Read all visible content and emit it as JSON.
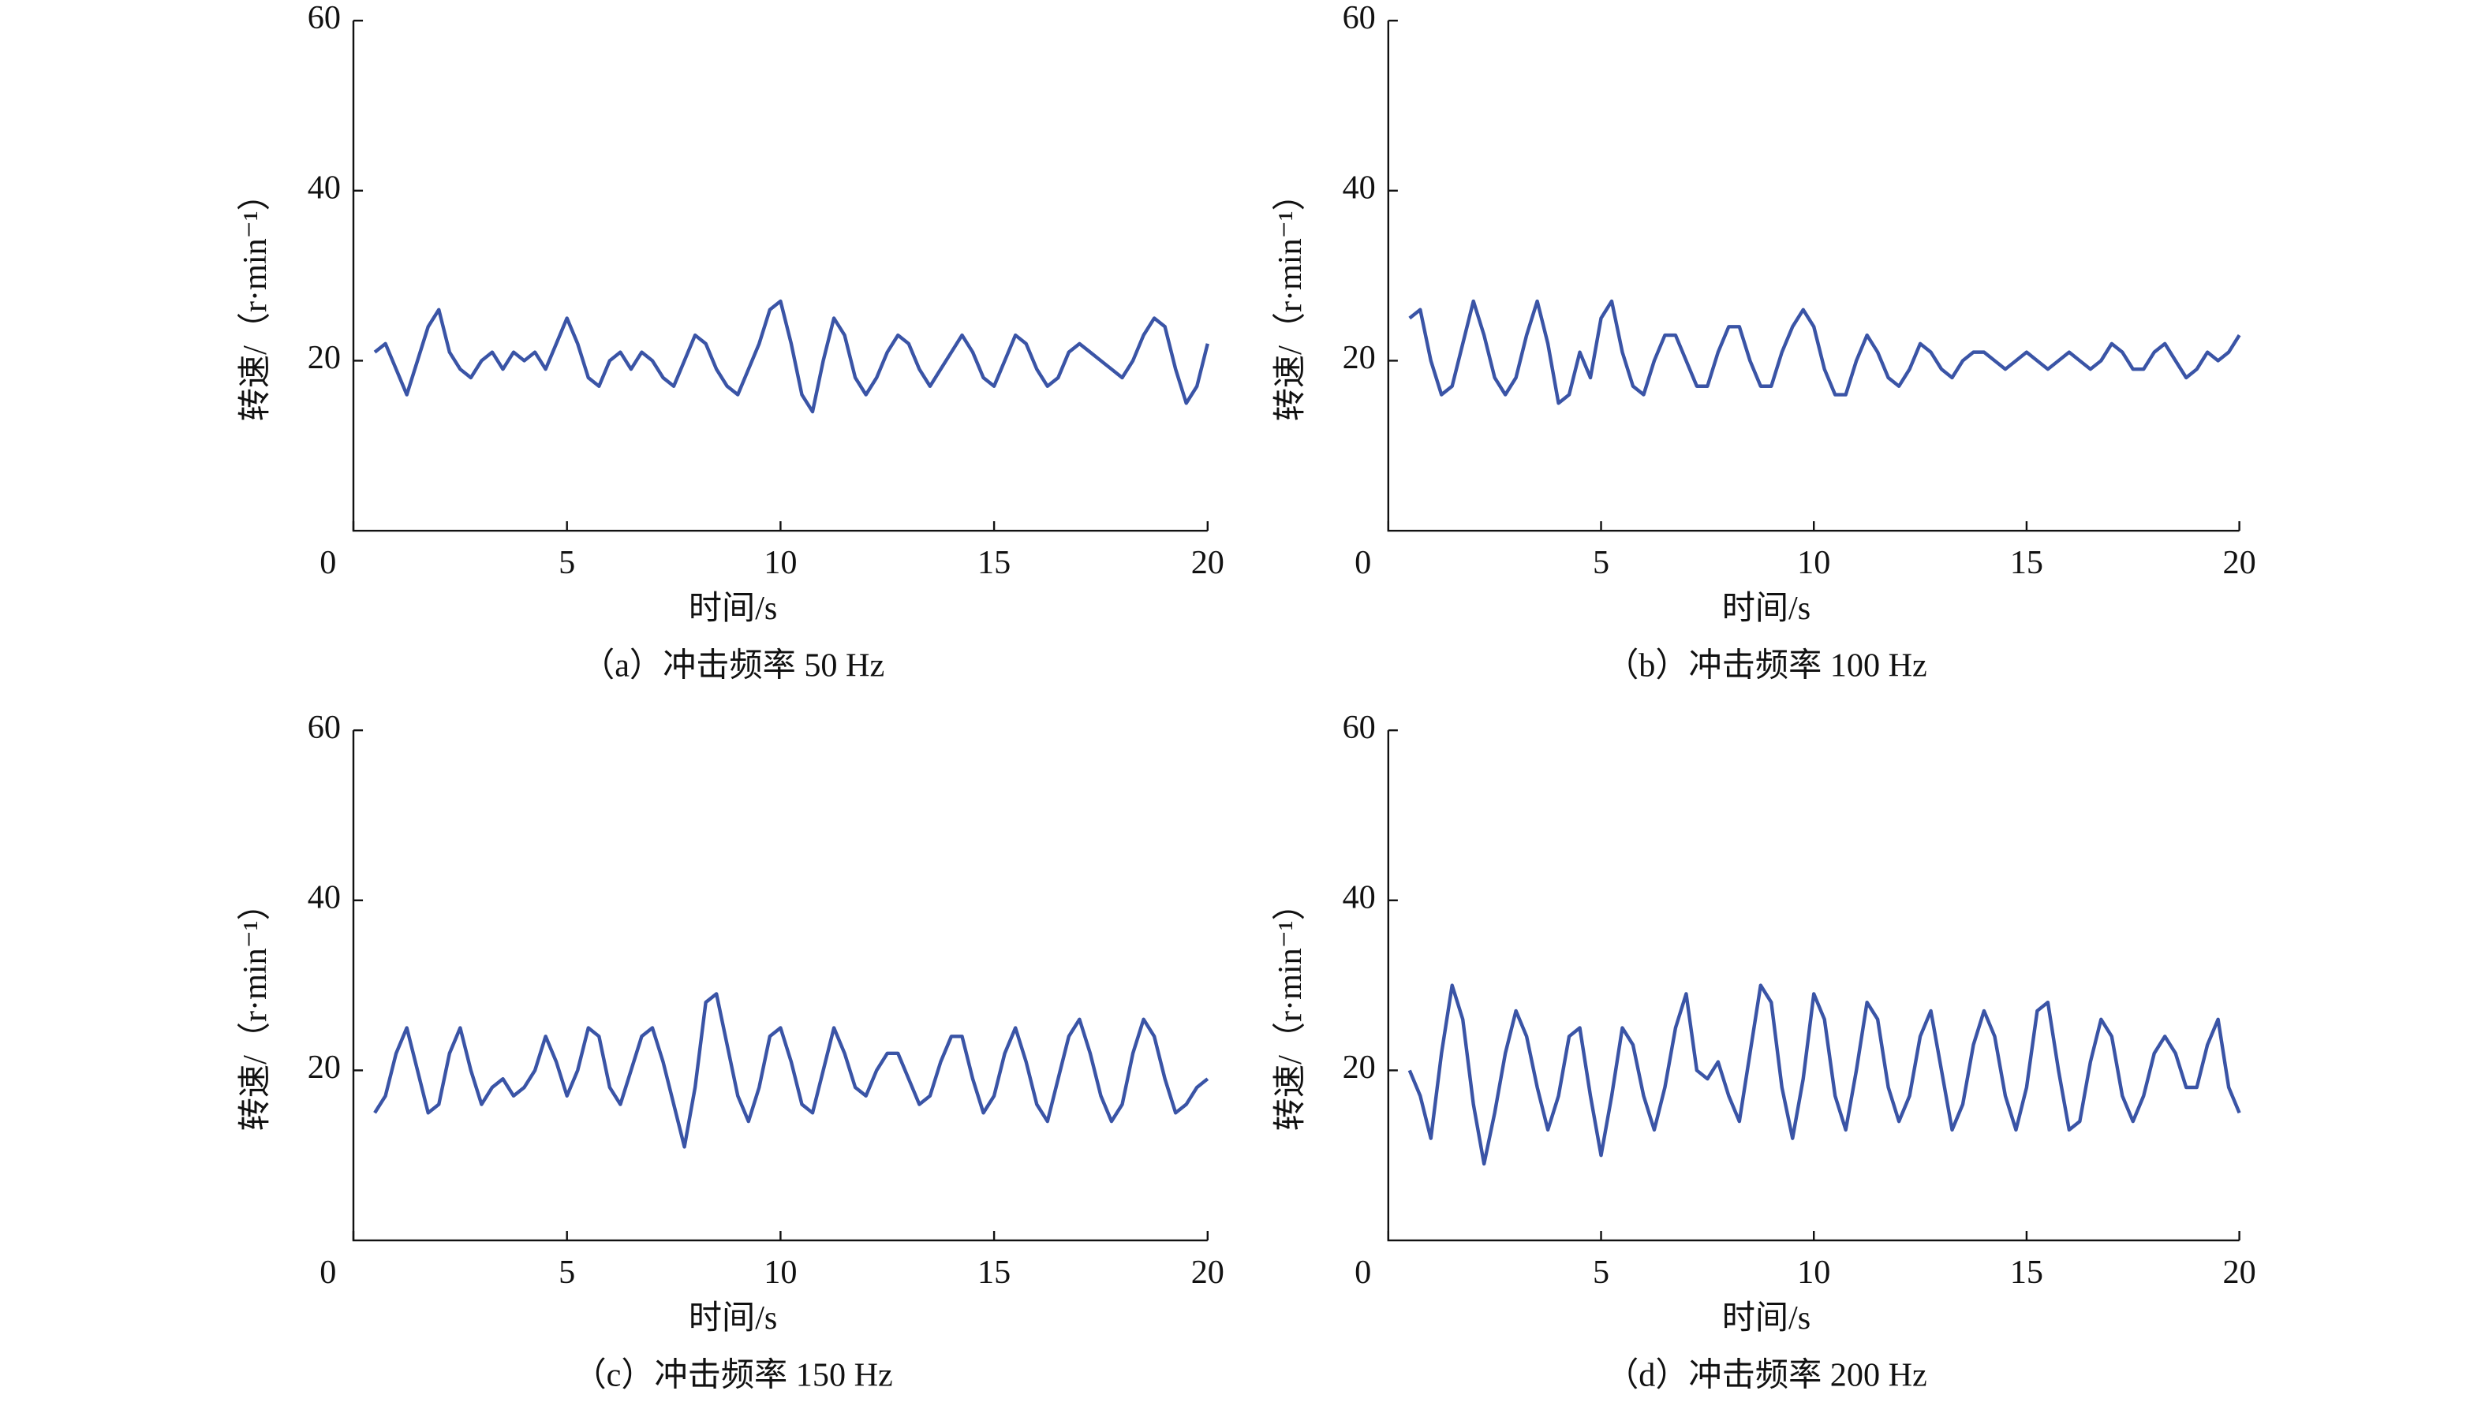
{
  "chart_data": [
    {
      "type": "line",
      "caption": "（a）冲击频率 50 Hz",
      "xlabel": "时间/s",
      "ylabel": "转速/（r·min⁻¹）",
      "x": [
        0.5,
        0.75,
        1,
        1.25,
        1.5,
        1.75,
        2,
        2.25,
        2.5,
        2.75,
        3,
        3.25,
        3.5,
        3.75,
        4,
        4.25,
        4.5,
        4.75,
        5,
        5.25,
        5.5,
        5.75,
        6,
        6.25,
        6.5,
        6.75,
        7,
        7.25,
        7.5,
        7.75,
        8,
        8.25,
        8.5,
        8.75,
        9,
        9.25,
        9.5,
        9.75,
        10,
        10.25,
        10.5,
        10.75,
        11,
        11.25,
        11.5,
        11.75,
        12,
        12.25,
        12.5,
        12.75,
        13,
        13.25,
        13.5,
        13.75,
        14,
        14.25,
        14.5,
        14.75,
        15,
        15.25,
        15.5,
        15.75,
        16,
        16.25,
        16.5,
        16.75,
        17,
        17.25,
        17.5,
        17.75,
        18,
        18.25,
        18.5,
        18.75,
        19,
        19.25,
        19.5,
        19.75,
        20
      ],
      "series": [
        {
          "color": "#3a54a6",
          "values": [
            21,
            22,
            19,
            16,
            20,
            24,
            26,
            21,
            19,
            18,
            20,
            21,
            19,
            21,
            20,
            21,
            19,
            22,
            25,
            22,
            18,
            17,
            20,
            21,
            19,
            21,
            20,
            18,
            17,
            20,
            23,
            22,
            19,
            17,
            16,
            19,
            22,
            26,
            27,
            22,
            16,
            14,
            20,
            25,
            23,
            18,
            16,
            18,
            21,
            23,
            22,
            19,
            17,
            19,
            21,
            23,
            21,
            18,
            17,
            20,
            23,
            22,
            19,
            17,
            18,
            21,
            22,
            21,
            20,
            19,
            18,
            20,
            23,
            25,
            24,
            19,
            15,
            17,
            22
          ]
        }
      ],
      "xlim": [
        0,
        20
      ],
      "ylim": [
        0,
        60
      ],
      "xticks": [
        0,
        5,
        10,
        15,
        20
      ],
      "yticks": [
        20,
        40,
        60
      ]
    },
    {
      "type": "line",
      "caption": "（b）冲击频率 100 Hz",
      "xlabel": "时间/s",
      "ylabel": "转速/（r·min⁻¹）",
      "x": [
        0.5,
        0.75,
        1,
        1.25,
        1.5,
        1.75,
        2,
        2.25,
        2.5,
        2.75,
        3,
        3.25,
        3.5,
        3.75,
        4,
        4.25,
        4.5,
        4.75,
        5,
        5.25,
        5.5,
        5.75,
        6,
        6.25,
        6.5,
        6.75,
        7,
        7.25,
        7.5,
        7.75,
        8,
        8.25,
        8.5,
        8.75,
        9,
        9.25,
        9.5,
        9.75,
        10,
        10.25,
        10.5,
        10.75,
        11,
        11.25,
        11.5,
        11.75,
        12,
        12.25,
        12.5,
        12.75,
        13,
        13.25,
        13.5,
        13.75,
        14,
        14.25,
        14.5,
        14.75,
        15,
        15.25,
        15.5,
        15.75,
        16,
        16.25,
        16.5,
        16.75,
        17,
        17.25,
        17.5,
        17.75,
        18,
        18.25,
        18.5,
        18.75,
        19,
        19.25,
        19.5,
        19.75,
        20
      ],
      "series": [
        {
          "color": "#3a54a6",
          "values": [
            25,
            26,
            20,
            16,
            17,
            22,
            27,
            23,
            18,
            16,
            18,
            23,
            27,
            22,
            15,
            16,
            21,
            18,
            25,
            27,
            21,
            17,
            16,
            20,
            23,
            23,
            20,
            17,
            17,
            21,
            24,
            24,
            20,
            17,
            17,
            21,
            24,
            26,
            24,
            19,
            16,
            16,
            20,
            23,
            21,
            18,
            17,
            19,
            22,
            21,
            19,
            18,
            20,
            21,
            21,
            20,
            19,
            20,
            21,
            20,
            19,
            20,
            21,
            20,
            19,
            20,
            22,
            21,
            19,
            19,
            21,
            22,
            20,
            18,
            19,
            21,
            20,
            21,
            23
          ]
        }
      ],
      "xlim": [
        0,
        20
      ],
      "ylim": [
        0,
        60
      ],
      "xticks": [
        0,
        5,
        10,
        15,
        20
      ],
      "yticks": [
        20,
        40,
        60
      ]
    },
    {
      "type": "line",
      "caption": "（c）冲击频率 150 Hz",
      "xlabel": "时间/s",
      "ylabel": "转速/（r·min⁻¹）",
      "x": [
        0.5,
        0.75,
        1,
        1.25,
        1.5,
        1.75,
        2,
        2.25,
        2.5,
        2.75,
        3,
        3.25,
        3.5,
        3.75,
        4,
        4.25,
        4.5,
        4.75,
        5,
        5.25,
        5.5,
        5.75,
        6,
        6.25,
        6.5,
        6.75,
        7,
        7.25,
        7.5,
        7.75,
        8,
        8.25,
        8.5,
        8.75,
        9,
        9.25,
        9.5,
        9.75,
        10,
        10.25,
        10.5,
        10.75,
        11,
        11.25,
        11.5,
        11.75,
        12,
        12.25,
        12.5,
        12.75,
        13,
        13.25,
        13.5,
        13.75,
        14,
        14.25,
        14.5,
        14.75,
        15,
        15.25,
        15.5,
        15.75,
        16,
        16.25,
        16.5,
        16.75,
        17,
        17.25,
        17.5,
        17.75,
        18,
        18.25,
        18.5,
        18.75,
        19,
        19.25,
        19.5,
        19.75,
        20
      ],
      "series": [
        {
          "color": "#3a54a6",
          "values": [
            15,
            17,
            22,
            25,
            20,
            15,
            16,
            22,
            25,
            20,
            16,
            18,
            19,
            17,
            18,
            20,
            24,
            21,
            17,
            20,
            25,
            24,
            18,
            16,
            20,
            24,
            25,
            21,
            16,
            11,
            18,
            28,
            29,
            23,
            17,
            14,
            18,
            24,
            25,
            21,
            16,
            15,
            20,
            25,
            22,
            18,
            17,
            20,
            22,
            22,
            19,
            16,
            17,
            21,
            24,
            24,
            19,
            15,
            17,
            22,
            25,
            21,
            16,
            14,
            19,
            24,
            26,
            22,
            17,
            14,
            16,
            22,
            26,
            24,
            19,
            15,
            16,
            18,
            19
          ]
        }
      ],
      "xlim": [
        0,
        20
      ],
      "ylim": [
        0,
        60
      ],
      "xticks": [
        0,
        5,
        10,
        15,
        20
      ],
      "yticks": [
        20,
        40,
        60
      ]
    },
    {
      "type": "line",
      "caption": "（d）冲击频率 200 Hz",
      "xlabel": "时间/s",
      "ylabel": "转速/（r·min⁻¹）",
      "x": [
        0.5,
        0.75,
        1,
        1.25,
        1.5,
        1.75,
        2,
        2.25,
        2.5,
        2.75,
        3,
        3.25,
        3.5,
        3.75,
        4,
        4.25,
        4.5,
        4.75,
        5,
        5.25,
        5.5,
        5.75,
        6,
        6.25,
        6.5,
        6.75,
        7,
        7.25,
        7.5,
        7.75,
        8,
        8.25,
        8.5,
        8.75,
        9,
        9.25,
        9.5,
        9.75,
        10,
        10.25,
        10.5,
        10.75,
        11,
        11.25,
        11.5,
        11.75,
        12,
        12.25,
        12.5,
        12.75,
        13,
        13.25,
        13.5,
        13.75,
        14,
        14.25,
        14.5,
        14.75,
        15,
        15.25,
        15.5,
        15.75,
        16,
        16.25,
        16.5,
        16.75,
        17,
        17.25,
        17.5,
        17.75,
        18,
        18.25,
        18.5,
        18.75,
        19,
        19.25,
        19.5,
        19.75,
        20
      ],
      "series": [
        {
          "color": "#3a54a6",
          "values": [
            20,
            17,
            12,
            22,
            30,
            26,
            16,
            9,
            15,
            22,
            27,
            24,
            18,
            13,
            17,
            24,
            25,
            17,
            10,
            17,
            25,
            23,
            17,
            13,
            18,
            25,
            29,
            20,
            19,
            21,
            17,
            14,
            22,
            30,
            28,
            18,
            12,
            19,
            29,
            26,
            17,
            13,
            20,
            28,
            26,
            18,
            14,
            17,
            24,
            27,
            20,
            13,
            16,
            23,
            27,
            24,
            17,
            13,
            18,
            27,
            28,
            20,
            13,
            14,
            21,
            26,
            24,
            17,
            14,
            17,
            22,
            24,
            22,
            18,
            18,
            23,
            26,
            18,
            15
          ]
        }
      ],
      "xlim": [
        0,
        20
      ],
      "ylim": [
        0,
        60
      ],
      "xticks": [
        0,
        5,
        10,
        15,
        20
      ],
      "yticks": [
        20,
        40,
        60
      ]
    }
  ]
}
